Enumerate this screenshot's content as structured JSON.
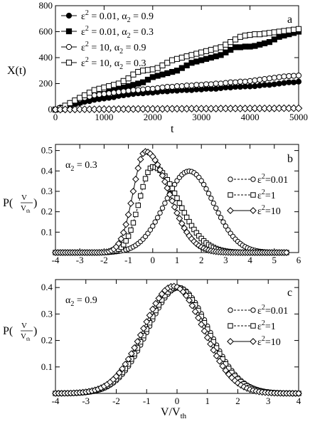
{
  "chart_data": [
    {
      "type": "line",
      "panel": "a",
      "xlabel": "t",
      "ylabel": "X(t)",
      "xlim": [
        0,
        5000
      ],
      "ylim": [
        0,
        800
      ],
      "xticks": [
        "0",
        "1000",
        "2000",
        "3000",
        "4000",
        "5000"
      ],
      "yticks": [
        "0",
        "200",
        "400",
        "600",
        "800"
      ],
      "grid": false,
      "legend_position": "top-left",
      "series": [
        {
          "name": "ε² = 0.01, α₂ = 0.9",
          "legend": {
            "eps": "ε",
            "eps_exp": "2",
            "eps_val": " = 0.01, α",
            "alpha_sub": "2",
            "alpha_val": " = 0.9"
          },
          "marker": "filled-circle",
          "x": [
            0,
            100,
            200,
            300,
            400,
            500,
            600,
            700,
            800,
            900,
            1000,
            1100,
            1200,
            1300,
            1400,
            1500,
            1600,
            1700,
            1800,
            1900,
            2000,
            2100,
            2200,
            2300,
            2400,
            2500,
            2600,
            2700,
            2800,
            2900,
            3000,
            3100,
            3200,
            3300,
            3400,
            3500,
            3600,
            3700,
            3800,
            3900,
            4000,
            4100,
            4200,
            4300,
            4400,
            4500,
            4600,
            4700,
            4800,
            4900,
            5000
          ],
          "y": [
            0,
            10,
            20,
            35,
            45,
            50,
            60,
            65,
            75,
            80,
            85,
            90,
            95,
            105,
            110,
            115,
            120,
            125,
            125,
            130,
            130,
            135,
            140,
            140,
            145,
            145,
            150,
            150,
            150,
            155,
            155,
            160,
            160,
            160,
            165,
            170,
            170,
            175,
            175,
            178,
            178,
            180,
            185,
            190,
            190,
            195,
            200,
            205,
            210,
            210,
            215
          ]
        },
        {
          "name": "ε² = 0.01, α₂ = 0.3",
          "legend": {
            "eps": "ε",
            "eps_exp": "2",
            "eps_val": " = 0.01, α",
            "alpha_sub": "2",
            "alpha_val": " = 0.3"
          },
          "marker": "filled-square",
          "x": [
            0,
            100,
            200,
            300,
            400,
            500,
            600,
            700,
            800,
            900,
            1000,
            1100,
            1200,
            1300,
            1400,
            1500,
            1600,
            1700,
            1800,
            1900,
            2000,
            2100,
            2200,
            2300,
            2400,
            2500,
            2600,
            2700,
            2800,
            2900,
            3000,
            3100,
            3200,
            3300,
            3400,
            3500,
            3600,
            3700,
            3800,
            3900,
            4000,
            4100,
            4200,
            4300,
            4400,
            4500,
            4600,
            4700,
            4800,
            4900,
            5000
          ],
          "y": [
            0,
            5,
            15,
            30,
            45,
            55,
            70,
            90,
            100,
            110,
            120,
            140,
            150,
            160,
            170,
            180,
            190,
            200,
            210,
            230,
            250,
            260,
            270,
            280,
            290,
            300,
            320,
            340,
            360,
            370,
            380,
            390,
            400,
            410,
            420,
            440,
            460,
            480,
            480,
            485,
            485,
            490,
            500,
            510,
            520,
            540,
            560,
            570,
            580,
            590,
            600
          ]
        },
        {
          "name": "ε² = 10, α₂ = 0.9",
          "legend": {
            "eps": "ε",
            "eps_exp": "2",
            "eps_val": " = 10, α",
            "alpha_sub": "2",
            "alpha_val": " = 0.9"
          },
          "marker": "open-circle",
          "x": [
            0,
            100,
            200,
            300,
            400,
            500,
            600,
            700,
            800,
            900,
            1000,
            1100,
            1200,
            1300,
            1400,
            1500,
            1600,
            1700,
            1800,
            1900,
            2000,
            2100,
            2200,
            2300,
            2400,
            2500,
            2600,
            2700,
            2800,
            2900,
            3000,
            3100,
            3200,
            3300,
            3400,
            3500,
            3600,
            3700,
            3800,
            3900,
            4000,
            4100,
            4200,
            4300,
            4400,
            4500,
            4600,
            4700,
            4800,
            4900,
            5000
          ],
          "y": [
            0,
            15,
            30,
            50,
            65,
            80,
            90,
            100,
            110,
            115,
            120,
            125,
            130,
            135,
            140,
            145,
            150,
            150,
            155,
            160,
            160,
            165,
            170,
            175,
            175,
            180,
            180,
            185,
            185,
            190,
            190,
            195,
            195,
            200,
            200,
            205,
            210,
            210,
            215,
            215,
            220,
            225,
            230,
            235,
            240,
            245,
            250,
            255,
            258,
            260,
            262
          ]
        },
        {
          "name": "ε² = 10, α₂ = 0.3",
          "legend": {
            "eps": "ε",
            "eps_exp": "2",
            "eps_val": " = 10, α",
            "alpha_sub": "2",
            "alpha_val": " = 0.3"
          },
          "marker": "open-square",
          "x": [
            0,
            100,
            200,
            300,
            400,
            500,
            600,
            700,
            800,
            900,
            1000,
            1100,
            1200,
            1300,
            1400,
            1500,
            1600,
            1700,
            1800,
            1900,
            2000,
            2100,
            2200,
            2300,
            2400,
            2500,
            2600,
            2700,
            2800,
            2900,
            3000,
            3100,
            3200,
            3300,
            3400,
            3500,
            3600,
            3700,
            3800,
            3900,
            4000,
            4100,
            4200,
            4300,
            4400,
            4500,
            4600,
            4700,
            4800,
            4900,
            5000
          ],
          "y": [
            0,
            10,
            30,
            50,
            70,
            90,
            110,
            130,
            150,
            160,
            170,
            180,
            190,
            200,
            220,
            240,
            270,
            290,
            300,
            305,
            310,
            320,
            340,
            360,
            380,
            390,
            400,
            410,
            420,
            430,
            440,
            450,
            460,
            470,
            480,
            500,
            520,
            540,
            560,
            570,
            575,
            580,
            580,
            585,
            590,
            595,
            600,
            605,
            610,
            615,
            620
          ]
        },
        {
          "name": "",
          "marker": "open-diamond",
          "x": [
            0,
            100,
            200,
            300,
            400,
            500,
            600,
            700,
            800,
            900,
            1000,
            1100,
            1200,
            1300,
            1400,
            1500,
            1600,
            1700,
            1800,
            1900,
            2000,
            2100,
            2200,
            2300,
            2400,
            2500,
            2600,
            2700,
            2800,
            2900,
            3000,
            3100,
            3200,
            3300,
            3400,
            3500,
            3600,
            3700,
            3800,
            3900,
            4000,
            4100,
            4200,
            4300,
            4400,
            4500,
            4600,
            4700,
            4800,
            4900,
            5000
          ],
          "y": [
            0,
            0,
            1,
            1,
            1,
            2,
            2,
            2,
            2,
            3,
            3,
            3,
            3,
            4,
            4,
            4,
            4,
            5,
            5,
            5,
            5,
            5,
            5,
            6,
            6,
            6,
            6,
            6,
            7,
            7,
            7,
            7,
            7,
            7,
            8,
            8,
            8,
            8,
            8,
            8,
            9,
            9,
            9,
            9,
            9,
            9,
            10,
            10,
            10,
            10,
            10
          ]
        }
      ]
    },
    {
      "type": "line",
      "panel": "b",
      "xlabel": "",
      "ylabel": "P(V/Vth)",
      "xlim": [
        -4,
        6
      ],
      "ylim": [
        0,
        0.53
      ],
      "xticks": [
        "-4",
        "-3",
        "-2",
        "-1",
        "0",
        "1",
        "2",
        "3",
        "4",
        "5",
        "6"
      ],
      "yticks": [
        "0.1",
        "0.2",
        "0.3",
        "0.4",
        "0.5"
      ],
      "grid": false,
      "legend_position": "right",
      "annotation": {
        "alpha": "α",
        "sub": "2",
        "val": " = 0.3"
      },
      "series": [
        {
          "name": "ε²=0.01",
          "legend": {
            "eps": "ε",
            "eps_exp": "2",
            "eps_val": "=0.01"
          },
          "marker": "open-circle",
          "dashed": true,
          "curve": "gaussian",
          "params": {
            "amplitude": 0.399,
            "mean": 1.5,
            "sigma": 1.0
          },
          "range": [
            -4,
            5.5
          ],
          "n_points": 96
        },
        {
          "name": "ε²=1",
          "legend": {
            "eps": "ε",
            "eps_exp": "2",
            "eps_val": "=1"
          },
          "marker": "open-square",
          "dashed": true,
          "curve": "skewed",
          "params": {
            "amplitude": 0.42,
            "mode": 0.0,
            "sigma_left": 0.55,
            "sigma_right": 1.05
          },
          "range": [
            -4,
            5.5
          ],
          "n_points": 96
        },
        {
          "name": "ε²=10",
          "legend": {
            "eps": "ε",
            "eps_exp": "2",
            "eps_val": "=10"
          },
          "marker": "open-diamond",
          "dashed": false,
          "curve": "skewed",
          "params": {
            "amplitude": 0.495,
            "mode": -0.3,
            "sigma_left": 0.5,
            "sigma_right": 0.95
          },
          "range": [
            -4,
            5.5
          ],
          "n_points": 96
        }
      ]
    },
    {
      "type": "line",
      "panel": "c",
      "xlabel": "V/Vth",
      "ylabel": "P(V/Vth)",
      "xlim": [
        -4,
        4
      ],
      "ylim": [
        0,
        0.43
      ],
      "xticks": [
        "-4",
        "-3",
        "-2",
        "-1",
        "0",
        "1",
        "2",
        "3",
        "4"
      ],
      "yticks": [
        "0.1",
        "0.2",
        "0.3",
        "0.4"
      ],
      "grid": false,
      "legend_position": "right",
      "annotation": {
        "alpha": "α",
        "sub": "2",
        "val": " = 0.9"
      },
      "series": [
        {
          "name": "ε²=0.01",
          "legend": {
            "eps": "ε",
            "eps_exp": "2",
            "eps_val": "=0.01"
          },
          "marker": "open-circle",
          "dashed": true,
          "curve": "gaussian",
          "params": {
            "amplitude": 0.399,
            "mean": 0.05,
            "sigma": 1.0
          },
          "range": [
            -4,
            4
          ],
          "n_points": 81
        },
        {
          "name": "ε²=1",
          "legend": {
            "eps": "ε",
            "eps_exp": "2",
            "eps_val": "=1"
          },
          "marker": "open-square",
          "dashed": true,
          "curve": "gaussian",
          "params": {
            "amplitude": 0.4,
            "mean": 0.0,
            "sigma": 1.0
          },
          "range": [
            -4,
            4
          ],
          "n_points": 81
        },
        {
          "name": "ε²=10",
          "legend": {
            "eps": "ε",
            "eps_exp": "2",
            "eps_val": "=10"
          },
          "marker": "open-diamond",
          "dashed": false,
          "curve": "gaussian",
          "params": {
            "amplitude": 0.405,
            "mean": -0.12,
            "sigma": 0.98
          },
          "range": [
            -4,
            4
          ],
          "n_points": 81
        }
      ]
    }
  ],
  "labels": {
    "panel_a": {
      "letter": "a",
      "xlabel": "t",
      "ylabel": "X(t)"
    },
    "panel_b": {
      "letter": "b",
      "ylabel_main": "P(",
      "ylabel_num": "V",
      "ylabel_den": "V",
      "ylabel_den_sub": "th",
      "ylabel_close": ")"
    },
    "panel_c": {
      "letter": "c",
      "ylabel_main": "P(",
      "ylabel_num": "V",
      "ylabel_den": "V",
      "ylabel_den_sub": "th",
      "ylabel_close": ")",
      "xlabel_main": "V/V",
      "xlabel_sub": "th"
    }
  }
}
